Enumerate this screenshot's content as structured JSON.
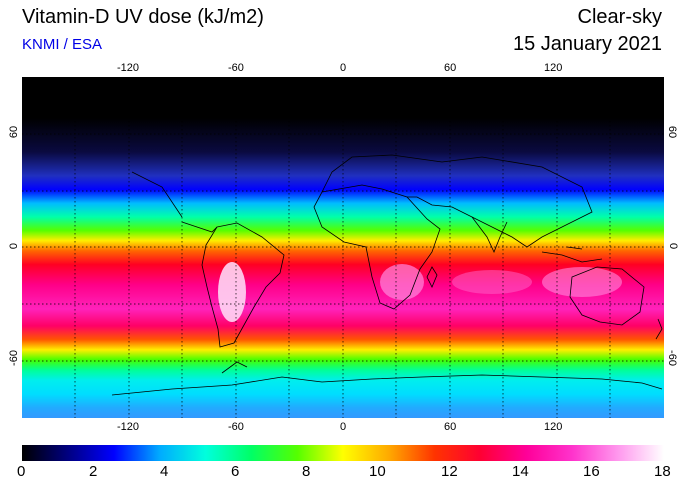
{
  "header": {
    "title": "Vitamin-D UV dose (kJ/m2)",
    "credit": "KNMI / ESA",
    "condition": "Clear-sky",
    "date": "15 January 2021"
  },
  "map": {
    "lon_ticks": [
      "-120",
      "-60",
      "0",
      "60",
      "120"
    ],
    "lat_ticks": [
      "60",
      "0",
      "-60"
    ]
  },
  "colorbar": {
    "ticks": [
      "0",
      "2",
      "4",
      "6",
      "8",
      "10",
      "12",
      "14",
      "16",
      "18"
    ],
    "colors": [
      "#000000",
      "#000080",
      "#0000ff",
      "#00aaff",
      "#00ffdd",
      "#00ff66",
      "#55ff00",
      "#ffff00",
      "#ffaa00",
      "#ff3300",
      "#ff0033",
      "#ff0099",
      "#ff33cc",
      "#ff99ee",
      "#ffffff"
    ]
  }
}
